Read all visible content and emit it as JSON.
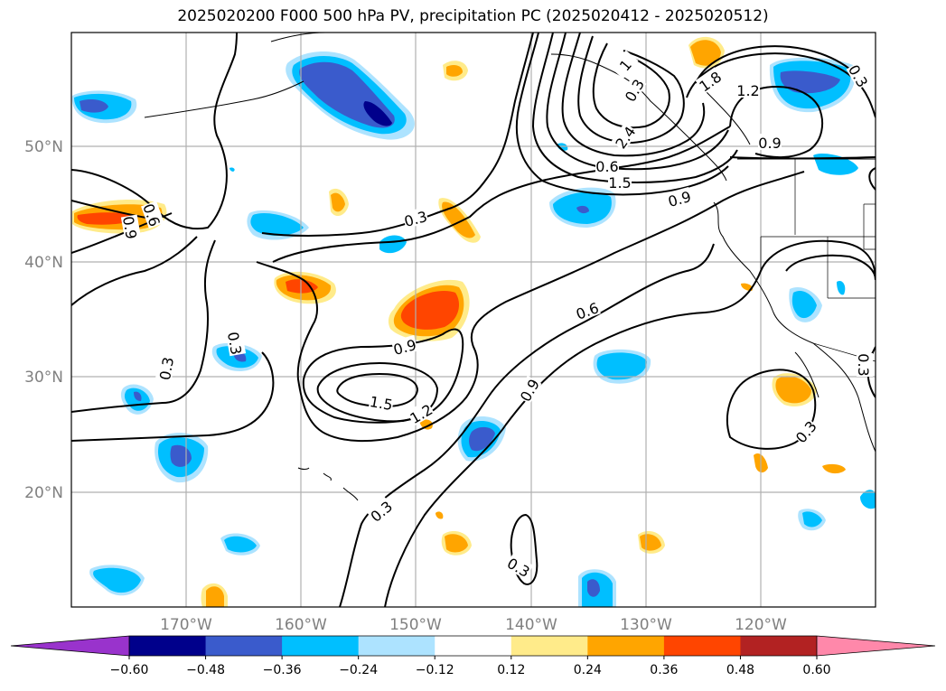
{
  "title": "2025020200 F000 500 hPa PV, precipitation PC (2025020412 - 2025020512)",
  "map": {
    "lat_labels": [
      "50°N",
      "40°N",
      "30°N",
      "20°N"
    ],
    "lon_labels": [
      "170°W",
      "160°W",
      "150°W",
      "140°W",
      "130°W",
      "120°W"
    ],
    "lon_range": [
      -180,
      -110
    ],
    "lat_range": [
      10,
      60
    ],
    "gridlines": true
  },
  "colorbar": {
    "tick_labels": [
      "−0.60",
      "−0.48",
      "−0.36",
      "−0.24",
      "−0.12",
      "0.12",
      "0.24",
      "0.36",
      "0.48",
      "0.60"
    ],
    "colors": [
      "#9933cc",
      "#00008b",
      "#3a5bcc",
      "#00bfff",
      "#ade3ff",
      "#ffffff",
      "#ffeb8a",
      "#ffa500",
      "#ff4500",
      "#b22222",
      "#ff88aa"
    ],
    "extend": "both"
  },
  "contour_labels": [
    "1",
    "1.8",
    "1.2",
    "0.9",
    "2.4",
    "1.5",
    "0.9",
    "0.6",
    "0.3",
    "0.9",
    "0.9",
    "0.6",
    "0.3",
    "0.3",
    "0.9",
    "1.5",
    "1.2",
    "0.3",
    "0.3",
    "0.3",
    "0.3",
    "0.3",
    "0.3",
    "0.6"
  ],
  "legend_note": ""
}
